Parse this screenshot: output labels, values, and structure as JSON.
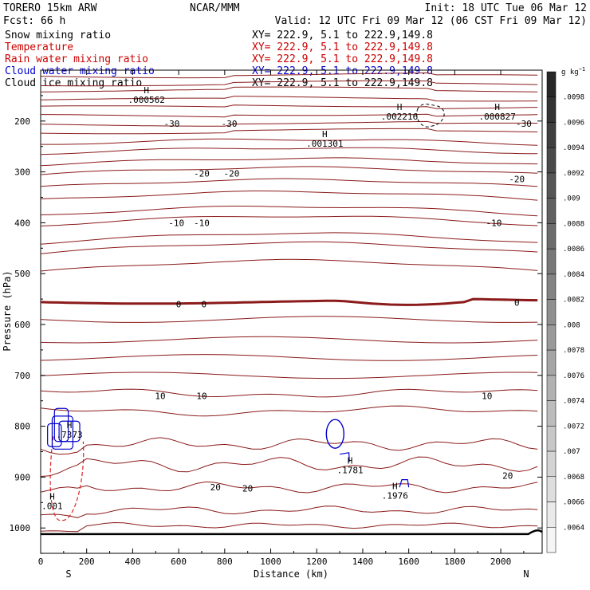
{
  "header": {
    "model": "TORERO  15km ARW",
    "center": "NCAR/MMM",
    "init": "Init: 18 UTC Tue 06 Mar 12",
    "fcst": "Fcst:   66 h",
    "valid": "Valid: 12 UTC Fri 09 Mar 12 (06 CST Fri 09 Mar 12)"
  },
  "fields": [
    {
      "name": "Snow mixing ratio",
      "xy": "XY= 222.9,  5.1 to 222.9,149.8",
      "color": "#000000"
    },
    {
      "name": "Temperature",
      "xy": "XY= 222.9,  5.1 to 222.9,149.8",
      "color": "#cc0000"
    },
    {
      "name": "Rain water mixing ratio",
      "xy": "XY= 222.9,  5.1 to 222.9,149.8",
      "color": "#cc0000"
    },
    {
      "name": "Cloud water mixing ratio",
      "xy": "XY= 222.9,  5.1 to 222.9,149.8",
      "color": "#0000cc"
    },
    {
      "name": "Cloud ice mixing ratio",
      "xy": "XY= 222.9,  5.1 to 222.9,149.8",
      "color": "#000000"
    }
  ],
  "chart_data": {
    "type": "line",
    "xlabel": "Distance (km)",
    "ylabel": "Pressure (hPa)",
    "xlim": [
      0,
      2180
    ],
    "ylim": [
      1050,
      100
    ],
    "x_ticks": [
      "0",
      "200",
      "400",
      "600",
      "800",
      "1000",
      "1200",
      "1400",
      "1600",
      "1800",
      "2000"
    ],
    "y_ticks": [
      "200",
      "300",
      "400",
      "500",
      "600",
      "700",
      "800",
      "900",
      "1000"
    ],
    "endpoint_labels": {
      "left": "S",
      "right": "N"
    },
    "colorbar": {
      "unit": "g kg-1",
      "labels": [
        ".0098",
        ".0096",
        ".0094",
        ".0092",
        ".009",
        ".0088",
        ".0086",
        ".0084",
        ".0082",
        ".008",
        ".0078",
        ".0076",
        ".0074",
        ".0072",
        ".007",
        ".0068",
        ".0066",
        ".0064"
      ]
    },
    "temperature_contour_labels": [
      "-30",
      "-30",
      "-30",
      "-20",
      "-20",
      "-20",
      "-10",
      "-10",
      "-10",
      "0",
      "0",
      "0",
      "10",
      "10",
      "10",
      "20",
      "20",
      "20"
    ],
    "maxima_labels": [
      {
        "mark": "H",
        "value": ".000562",
        "x_km": 460,
        "p_hpa": 152,
        "color": "#000000"
      },
      {
        "mark": "H",
        "value": ".002216",
        "x_km": 1560,
        "p_hpa": 185,
        "color": "#000000"
      },
      {
        "mark": "H",
        "value": ".000827",
        "x_km": 1985,
        "p_hpa": 185,
        "color": "#000000"
      },
      {
        "mark": "H",
        "value": ".001301",
        "x_km": 1235,
        "p_hpa": 238,
        "color": "#000000"
      },
      {
        "mark": "H",
        "value": ".1781",
        "x_km": 1345,
        "p_hpa": 880,
        "color": "#0000cc"
      },
      {
        "mark": "H",
        "value": ".1976",
        "x_km": 1540,
        "p_hpa": 930,
        "color": "#0000cc"
      },
      {
        "mark": "H",
        "value": ".001",
        "x_km": 50,
        "p_hpa": 950,
        "color": "#cc0000"
      },
      {
        "mark": "H",
        "value": ".7373",
        "x_km": 125,
        "p_hpa": 810,
        "color": "#cc0000"
      }
    ],
    "colors": {
      "temperature": "#8b1a1a",
      "rain": "#dd2222",
      "cloud_water": "#0000cc",
      "cloud_ice": "#000000",
      "terrain": "#000000"
    }
  }
}
